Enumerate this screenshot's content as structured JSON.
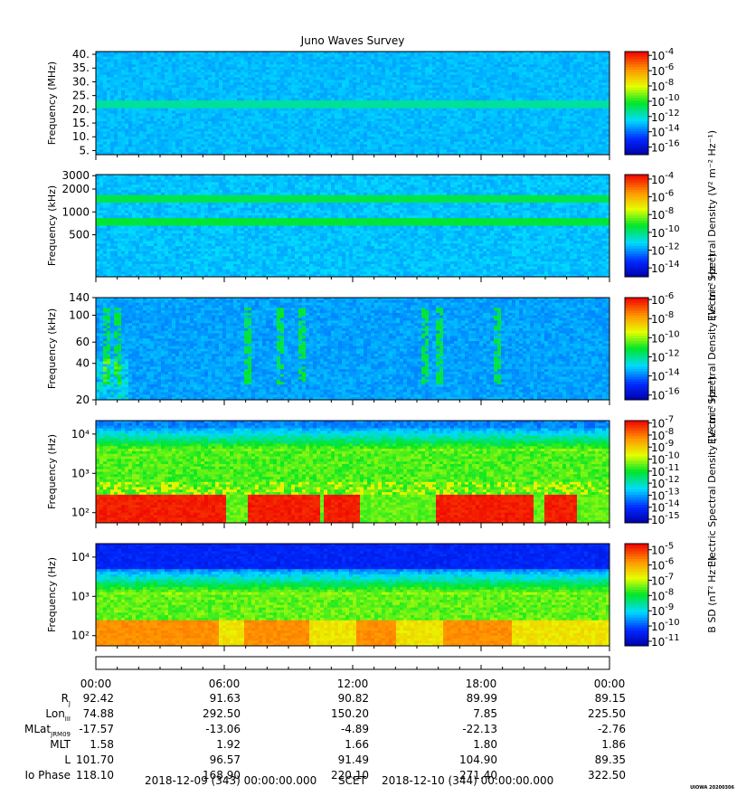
{
  "title": "Juno Waves Survey",
  "chart_data": [
    {
      "type": "heatmap",
      "ylabel": "Frequency (MHz)",
      "yticks": [
        "40.",
        "35.",
        "30.",
        "25.",
        "20.",
        "15.",
        "10.",
        "5."
      ],
      "ytick_values": [
        40,
        35,
        30,
        25,
        20,
        15,
        10,
        5
      ],
      "ylim": [
        3.5,
        41
      ],
      "yscale": "linear",
      "colorbar_ticks": [
        -4,
        -6,
        -8,
        -10,
        -12,
        -14,
        -16
      ],
      "colorbar_range": [
        -17,
        -3.5
      ],
      "background_level": -13,
      "bands": [
        {
          "center": 21.5,
          "level": -11.5
        }
      ]
    },
    {
      "type": "heatmap",
      "ylabel": "Frequency (kHz)",
      "yticks": [
        "3000",
        "2000",
        "1000",
        "500"
      ],
      "ytick_values": [
        3000,
        2000,
        1000,
        500
      ],
      "ylim": [
        140,
        3100
      ],
      "yscale": "log",
      "colorbar_ticks": [
        -4,
        -6,
        -8,
        -10,
        -12,
        -14
      ],
      "colorbar_range": [
        -15,
        -3.5
      ],
      "colorbar_label": "Electric Spectral Density",
      "colorbar_unit": "(V² m⁻² Hz⁻¹)",
      "background_level": -11.5,
      "bands": [
        {
          "center": 1500,
          "level": -9.6
        },
        {
          "center": 730,
          "level": -9.4
        }
      ]
    },
    {
      "type": "heatmap",
      "ylabel": "Frequency (kHz)",
      "yticks": [
        "140",
        "100",
        "60",
        "40",
        "20"
      ],
      "ytick_values": [
        140,
        100,
        60,
        40,
        20
      ],
      "ylim": [
        20,
        140
      ],
      "yscale": "log",
      "colorbar_ticks": [
        -6,
        -8,
        -10,
        -12,
        -14,
        -16
      ],
      "colorbar_range": [
        -16.5,
        -5.8
      ],
      "colorbar_label": "Electric Spectral Density",
      "colorbar_unit": "(V² m⁻² Hz⁻¹)",
      "background_level": -13.6,
      "bursts_at_hours": [
        0.5,
        1.0,
        7.1,
        8.6,
        9.7,
        15.4,
        16.0,
        18.7
      ]
    },
    {
      "type": "heatmap",
      "ylabel": "Frequency (Hz)",
      "yticks": [
        "10⁴",
        "10³",
        "10²"
      ],
      "ytick_values": [
        10000,
        1000,
        100
      ],
      "ylim": [
        55,
        22000
      ],
      "yscale": "log",
      "colorbar_ticks": [
        -7,
        -8,
        -9,
        -10,
        -11,
        -12,
        -13,
        -14,
        -15
      ],
      "colorbar_range": [
        -15.3,
        -6.8
      ],
      "colorbar_label": "Electric Spectral Density",
      "colorbar_unit": "(V² m⁻² Hz⁻¹)",
      "low_freq_high_intervals_hours": [
        [
          0,
          6
        ],
        [
          7.1,
          10.4
        ],
        [
          10.6,
          12.3
        ],
        [
          15.9,
          20.5
        ],
        [
          20.9,
          22.5
        ]
      ]
    },
    {
      "type": "heatmap",
      "ylabel": "Frequency (Hz)",
      "yticks": [
        "10⁴",
        "10³",
        "10²"
      ],
      "ytick_values": [
        10000,
        1000,
        100
      ],
      "ylim": [
        55,
        22000
      ],
      "yscale": "log",
      "colorbar_ticks": [
        -5,
        -6,
        -7,
        -8,
        -9,
        -10,
        -11
      ],
      "colorbar_range": [
        -11.3,
        -4.6
      ],
      "colorbar_label": "B SD",
      "colorbar_unit": "(nT² Hz⁻¹)",
      "low_freq_high_intervals_hours": [
        [
          0,
          5.8
        ],
        [
          7,
          9.9
        ],
        [
          12.2,
          14.1
        ],
        [
          16.2,
          19.4
        ]
      ]
    }
  ],
  "time_axis": {
    "labels": [
      "00:00",
      "06:00",
      "12:00",
      "18:00",
      "00:00"
    ],
    "hours": [
      0,
      6,
      12,
      18,
      24
    ]
  },
  "ephemeris": {
    "rows": [
      {
        "label": "R",
        "sub": "J",
        "values": [
          "92.42",
          "91.63",
          "90.82",
          "89.99",
          "89.15"
        ]
      },
      {
        "label": "Lon",
        "sub": "III",
        "values": [
          "74.88",
          "292.50",
          "150.20",
          "7.85",
          "225.50"
        ]
      },
      {
        "label": "MLat",
        "sub": "JRM09",
        "values": [
          "-17.57",
          "-13.06",
          "-4.89",
          "-22.13",
          "-2.76"
        ]
      },
      {
        "label": "MLT",
        "sub": "",
        "values": [
          "1.58",
          "1.92",
          "1.66",
          "1.80",
          "1.86"
        ]
      },
      {
        "label": "L",
        "sub": "",
        "values": [
          "101.70",
          "96.57",
          "91.49",
          "104.90",
          "89.35"
        ]
      },
      {
        "label": "Io Phase",
        "sub": "",
        "values": [
          "118.10",
          "168.90",
          "220.10",
          "271.40",
          "322.50"
        ]
      }
    ]
  },
  "footer": {
    "start": "2018-12-09 (343) 00:00:00.000",
    "scet": "SCET",
    "end": "2018-12-10 (344) 00:00:00.000",
    "stamp": "UIOWA 20200306"
  }
}
